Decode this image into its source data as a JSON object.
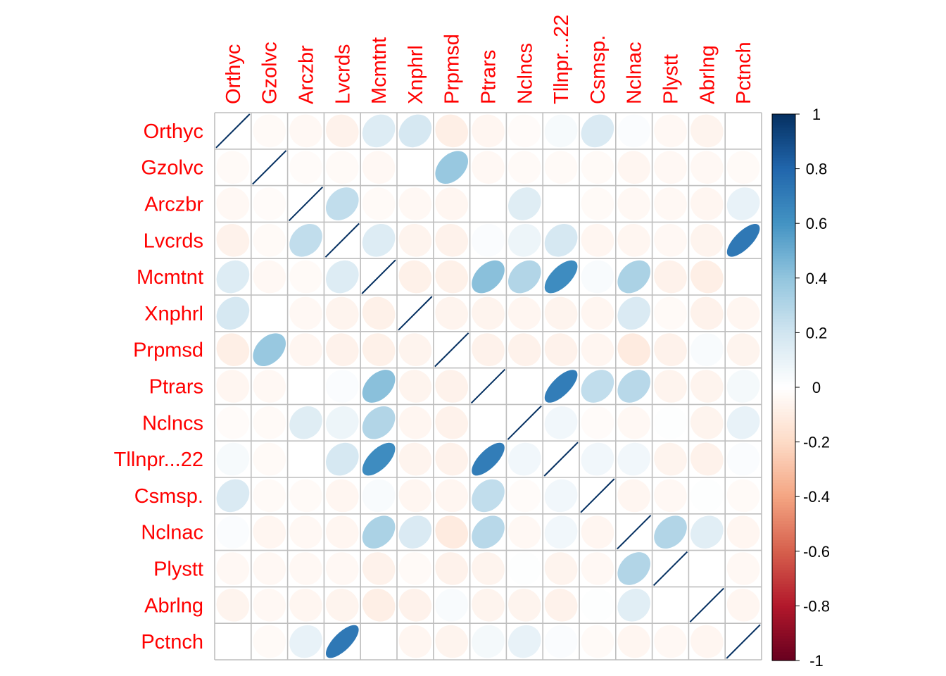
{
  "chart_data": {
    "type": "heatmap",
    "method": "ellipse",
    "label_color": "#FF0000",
    "labels": [
      "Orthyc",
      "Gzolvc",
      "Arczbr",
      "Lvcrds",
      "Mcmtnt",
      "Xnphrl",
      "Prpmsd",
      "Ptrars",
      "Nclncs",
      "Tllnpr...22",
      "Csmsp.",
      "Nclnac",
      "Plystt",
      "Abrlng",
      "Pctnch"
    ],
    "matrix": [
      [
        1,
        -0.03,
        -0.04,
        -0.07,
        0.15,
        0.18,
        -0.09,
        -0.05,
        -0.02,
        0.04,
        0.16,
        0.02,
        -0.04,
        -0.06,
        0
      ],
      [
        -0.03,
        1,
        -0.02,
        -0.03,
        -0.04,
        0,
        0.38,
        -0.04,
        -0.03,
        -0.03,
        -0.03,
        -0.05,
        -0.04,
        -0.04,
        -0.03
      ],
      [
        -0.04,
        -0.02,
        1,
        0.25,
        -0.03,
        -0.04,
        -0.05,
        0,
        0.14,
        0,
        -0.03,
        -0.04,
        -0.04,
        -0.05,
        0.1
      ],
      [
        -0.07,
        -0.03,
        0.25,
        1,
        0.15,
        -0.06,
        -0.07,
        0.02,
        0.08,
        0.18,
        -0.05,
        -0.05,
        -0.04,
        -0.06,
        0.72
      ],
      [
        0.15,
        -0.04,
        -0.03,
        0.15,
        1,
        -0.08,
        -0.08,
        0.42,
        0.3,
        0.63,
        0.03,
        0.32,
        -0.07,
        -0.09,
        0
      ],
      [
        0.18,
        0,
        -0.04,
        -0.06,
        -0.08,
        1,
        -0.06,
        -0.06,
        -0.05,
        -0.06,
        -0.05,
        0.16,
        -0.03,
        -0.07,
        -0.05
      ],
      [
        -0.09,
        0.38,
        -0.05,
        -0.07,
        -0.08,
        -0.06,
        1,
        -0.07,
        -0.07,
        -0.07,
        -0.05,
        -0.11,
        -0.07,
        0.03,
        -0.06
      ],
      [
        -0.05,
        -0.04,
        0,
        0.02,
        0.42,
        -0.06,
        -0.07,
        1,
        0,
        0.7,
        0.25,
        0.28,
        -0.06,
        -0.06,
        0.05
      ],
      [
        -0.02,
        -0.03,
        0.14,
        0.08,
        0.3,
        -0.05,
        -0.07,
        0,
        1,
        0.06,
        -0.02,
        -0.04,
        0.01,
        -0.06,
        0.1
      ],
      [
        0.04,
        -0.03,
        0,
        0.18,
        0.63,
        -0.06,
        -0.07,
        0.7,
        0.06,
        1,
        0.06,
        0.06,
        -0.06,
        -0.07,
        0.02
      ],
      [
        0.16,
        -0.03,
        -0.03,
        -0.05,
        0.03,
        -0.05,
        -0.05,
        0.25,
        -0.02,
        0.06,
        1,
        -0.05,
        -0.04,
        0.01,
        -0.03
      ],
      [
        0.02,
        -0.05,
        -0.04,
        -0.05,
        0.32,
        0.16,
        -0.11,
        0.28,
        -0.04,
        0.06,
        -0.05,
        1,
        0.3,
        0.13,
        -0.05
      ],
      [
        -0.04,
        -0.04,
        -0.04,
        -0.04,
        -0.07,
        -0.03,
        -0.07,
        -0.06,
        0.01,
        -0.06,
        -0.04,
        0.3,
        1,
        0,
        -0.04
      ],
      [
        -0.06,
        -0.04,
        -0.05,
        -0.06,
        -0.09,
        -0.07,
        0.03,
        -0.06,
        -0.06,
        -0.07,
        0.01,
        0.13,
        0,
        1,
        -0.05
      ],
      [
        0,
        -0.03,
        0.1,
        0.72,
        0,
        -0.05,
        -0.06,
        0.05,
        0.1,
        0.02,
        -0.03,
        -0.05,
        -0.04,
        -0.05,
        1
      ]
    ],
    "colorbar": {
      "min": -1,
      "max": 1,
      "ticks": [
        "1",
        "0.8",
        "0.6",
        "0.4",
        "0.2",
        "0",
        "-0.2",
        "-0.4",
        "-0.6",
        "-0.8",
        "-1"
      ],
      "palette": [
        "#67001F",
        "#B2182B",
        "#D6604D",
        "#F4A582",
        "#FDDBC7",
        "#FFFFFF",
        "#D1E5F0",
        "#92C5DE",
        "#4393C3",
        "#2166AC",
        "#053061"
      ]
    }
  }
}
